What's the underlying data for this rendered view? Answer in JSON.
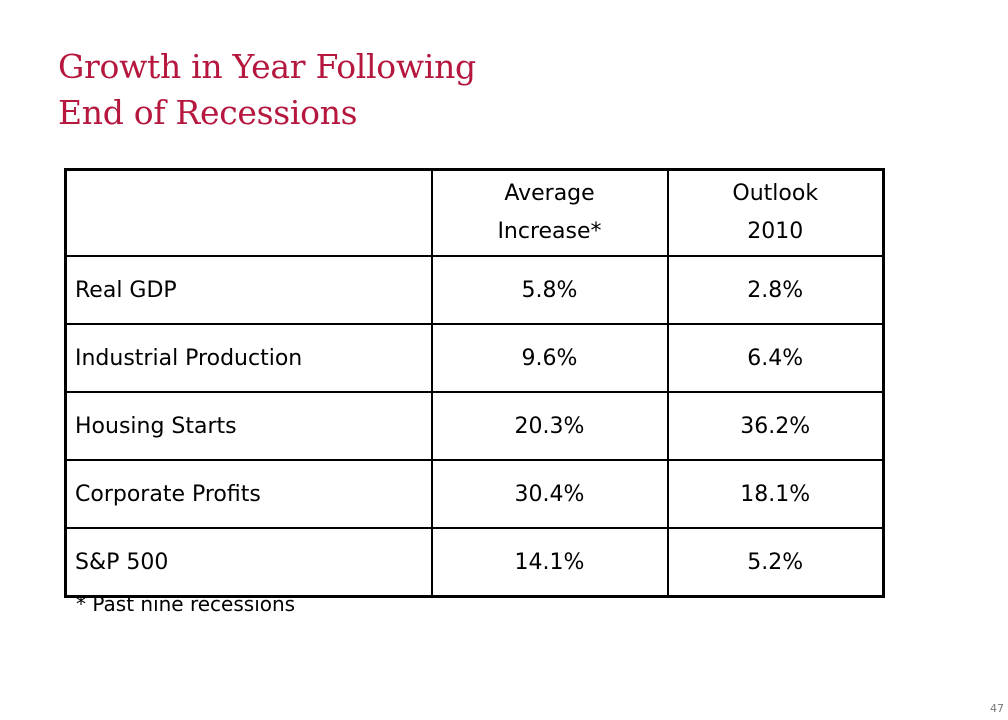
{
  "slide": {
    "title_line1": "Growth in Year Following",
    "title_line2": "End of Recessions",
    "page_number": "47"
  },
  "table": {
    "headers": {
      "label": "",
      "average_line1": "Average",
      "average_line2": "Increase*",
      "outlook_line1": "Outlook",
      "outlook_line2": "2010"
    },
    "rows": [
      {
        "label": "Real GDP",
        "average": "5.8%",
        "outlook": "2.8%"
      },
      {
        "label": "Industrial Production",
        "average": "9.6%",
        "outlook": "6.4%"
      },
      {
        "label": "Housing Starts",
        "average": "20.3%",
        "outlook": "36.2%"
      },
      {
        "label": "Corporate Profits",
        "average": "30.4%",
        "outlook": "18.1%"
      },
      {
        "label": "S&P 500",
        "average": "14.1%",
        "outlook": "5.2%"
      }
    ]
  },
  "footnote": "* Past nine recessions",
  "colors": {
    "title": "#b5173f",
    "text": "#000000",
    "border": "#000000"
  }
}
